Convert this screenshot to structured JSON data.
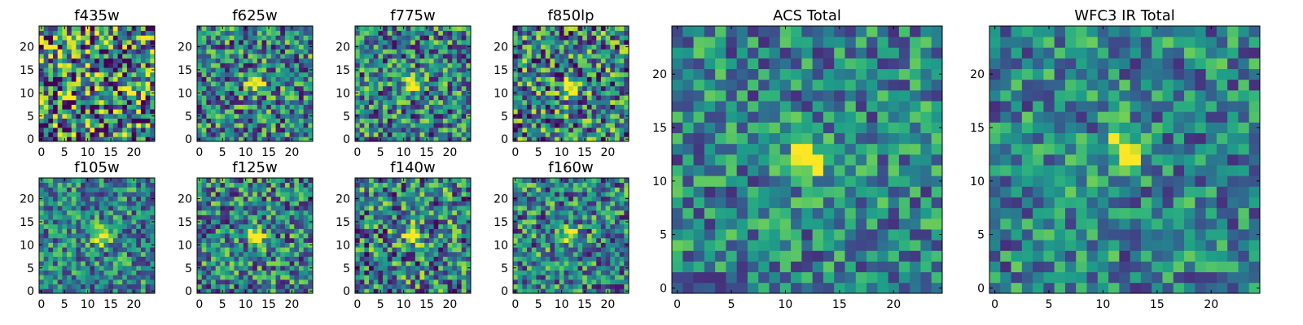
{
  "chart_data": [
    {
      "type": "heatmap",
      "title": "f435w",
      "xlabel": "",
      "ylabel": "",
      "xlim": [
        0,
        25
      ],
      "ylim": [
        0,
        25
      ],
      "xticks": [
        0,
        5,
        10,
        15,
        20
      ],
      "yticks": [
        0,
        5,
        10,
        15,
        20
      ],
      "grid_size": 25,
      "colormap": "viridis",
      "source_peak": null,
      "noise": 0.62,
      "seed": 11
    },
    {
      "type": "heatmap",
      "title": "f625w",
      "xlabel": "",
      "ylabel": "",
      "xlim": [
        0,
        25
      ],
      "ylim": [
        0,
        25
      ],
      "xticks": [
        0,
        5,
        10,
        15,
        20
      ],
      "yticks": [
        0,
        5,
        10,
        15,
        20
      ],
      "grid_size": 25,
      "colormap": "viridis",
      "source_peak": [
        12,
        12
      ],
      "noise": 0.42,
      "seed": 23
    },
    {
      "type": "heatmap",
      "title": "f775w",
      "xlabel": "",
      "ylabel": "",
      "xlim": [
        0,
        25
      ],
      "ylim": [
        0,
        25
      ],
      "xticks": [
        0,
        5,
        10,
        15,
        20
      ],
      "yticks": [
        0,
        5,
        10,
        15,
        20
      ],
      "grid_size": 25,
      "colormap": "viridis",
      "source_peak": [
        12,
        12
      ],
      "noise": 0.42,
      "seed": 37
    },
    {
      "type": "heatmap",
      "title": "f850lp",
      "xlabel": "",
      "ylabel": "",
      "xlim": [
        0,
        25
      ],
      "ylim": [
        0,
        25
      ],
      "xticks": [
        0,
        5,
        10,
        15,
        20
      ],
      "yticks": [
        0,
        5,
        10,
        15,
        20
      ],
      "grid_size": 25,
      "colormap": "viridis",
      "source_peak": [
        12,
        11
      ],
      "noise": 0.48,
      "seed": 41
    },
    {
      "type": "heatmap",
      "title": "f105w",
      "xlabel": "",
      "ylabel": "",
      "xlim": [
        0,
        25
      ],
      "ylim": [
        0,
        25
      ],
      "xticks": [
        0,
        5,
        10,
        15,
        20
      ],
      "yticks": [
        0,
        5,
        10,
        15,
        20
      ],
      "grid_size": 25,
      "colormap": "viridis",
      "source_peak": [
        13,
        12
      ],
      "noise": 0.35,
      "seed": 53
    },
    {
      "type": "heatmap",
      "title": "f125w",
      "xlabel": "",
      "ylabel": "",
      "xlim": [
        0,
        25
      ],
      "ylim": [
        0,
        25
      ],
      "xticks": [
        0,
        5,
        10,
        15,
        20
      ],
      "yticks": [
        0,
        5,
        10,
        15,
        20
      ],
      "grid_size": 25,
      "colormap": "viridis",
      "source_peak": [
        12,
        12
      ],
      "noise": 0.4,
      "seed": 67
    },
    {
      "type": "heatmap",
      "title": "f140w",
      "xlabel": "",
      "ylabel": "",
      "xlim": [
        0,
        25
      ],
      "ylim": [
        0,
        25
      ],
      "xticks": [
        0,
        5,
        10,
        15,
        20
      ],
      "yticks": [
        0,
        5,
        10,
        15,
        20
      ],
      "grid_size": 25,
      "colormap": "viridis",
      "source_peak": [
        12,
        12
      ],
      "noise": 0.45,
      "seed": 79
    },
    {
      "type": "heatmap",
      "title": "f160w",
      "xlabel": "",
      "ylabel": "",
      "xlim": [
        0,
        25
      ],
      "ylim": [
        0,
        25
      ],
      "xticks": [
        0,
        5,
        10,
        15,
        20
      ],
      "yticks": [
        0,
        5,
        10,
        15,
        20
      ],
      "grid_size": 25,
      "colormap": "viridis",
      "source_peak": [
        12,
        12
      ],
      "noise": 0.4,
      "seed": 83
    },
    {
      "type": "heatmap",
      "title": "ACS Total",
      "xlabel": "",
      "ylabel": "",
      "xlim": [
        0,
        25
      ],
      "ylim": [
        0,
        25
      ],
      "xticks": [
        0,
        5,
        10,
        15,
        20
      ],
      "yticks": [
        0,
        5,
        10,
        15,
        20
      ],
      "grid_size": 25,
      "colormap": "viridis",
      "source_peak": [
        12,
        12
      ],
      "noise": 0.32,
      "seed": 97
    },
    {
      "type": "heatmap",
      "title": "WFC3 IR Total",
      "xlabel": "",
      "ylabel": "",
      "xlim": [
        0,
        25
      ],
      "ylim": [
        0,
        25
      ],
      "xticks": [
        0,
        5,
        10,
        15,
        20
      ],
      "yticks": [
        0,
        5,
        10,
        15,
        20
      ],
      "grid_size": 25,
      "colormap": "viridis",
      "source_peak": [
        12,
        13
      ],
      "noise": 0.32,
      "seed": 101
    }
  ]
}
